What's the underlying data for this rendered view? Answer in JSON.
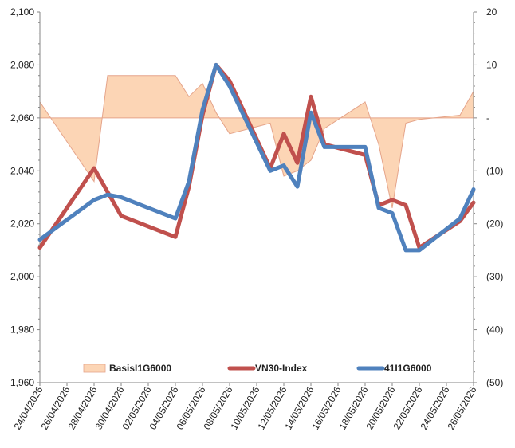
{
  "chart_data": {
    "type": "line",
    "x": [
      "24/04/2026",
      "28/04/2026",
      "29/04/2026",
      "30/04/2026",
      "04/05/2026",
      "05/05/2026",
      "06/05/2026",
      "07/05/2026",
      "08/05/2026",
      "11/05/2026",
      "12/05/2026",
      "13/05/2026",
      "14/05/2026",
      "15/05/2026",
      "18/05/2026",
      "19/05/2026",
      "20/05/2026",
      "21/05/2026",
      "22/05/2026",
      "25/05/2026",
      "26/05/2026"
    ],
    "x_tick_labels": [
      "24/04/2026",
      "26/04/2026",
      "28/04/2026",
      "30/04/2026",
      "02/05/2026",
      "04/05/2026",
      "06/05/2026",
      "08/05/2026",
      "10/05/2026",
      "12/05/2026",
      "14/05/2026",
      "16/05/2026",
      "18/05/2026",
      "20/05/2026",
      "22/05/2026",
      "24/05/2026",
      "26/05/2026"
    ],
    "y_left": {
      "min": 1960,
      "max": 2100,
      "step": 20,
      "tick_labels": [
        "1,960",
        "1,980",
        "2,000",
        "2,020",
        "2,040",
        "2,060",
        "2,080",
        "2,100"
      ]
    },
    "y_right": {
      "min": -50,
      "max": 20,
      "step": 10,
      "tick_labels": [
        "(50)",
        "(40)",
        "(30)",
        "(20)",
        "(10)",
        "-",
        "10",
        "20"
      ]
    },
    "series": [
      {
        "name": "BasisI1G6000",
        "kind": "area",
        "axis": "right",
        "color": "#fcd5b5",
        "edge_color": "#e5a48a",
        "values": [
          3,
          -12,
          8,
          8,
          8,
          4,
          6.5,
          1,
          -3,
          -1,
          -11,
          -10,
          -8,
          -2,
          3,
          -5,
          -17,
          -1,
          -0.3,
          0.5,
          5
        ]
      },
      {
        "name": "VN30-Index",
        "kind": "line",
        "axis": "left",
        "color": "#c0504d",
        "values": [
          2011,
          2041,
          2032,
          2023,
          2015,
          2034,
          2061,
          2080,
          2074,
          2041,
          2054,
          2043,
          2068,
          2050,
          2046,
          2027,
          2029,
          2027,
          2011,
          2021,
          2028
        ]
      },
      {
        "name": "41I1G6000",
        "kind": "line",
        "axis": "left",
        "color": "#4f81bd",
        "values": [
          2014,
          2029,
          2031,
          2030,
          2022,
          2036,
          2063,
          2080,
          2072,
          2040,
          2042,
          2034,
          2062,
          2049,
          2049,
          2026,
          2024,
          2010,
          2010,
          2022,
          2033
        ]
      }
    ],
    "legend_position": "bottom-inside",
    "grid": false
  }
}
